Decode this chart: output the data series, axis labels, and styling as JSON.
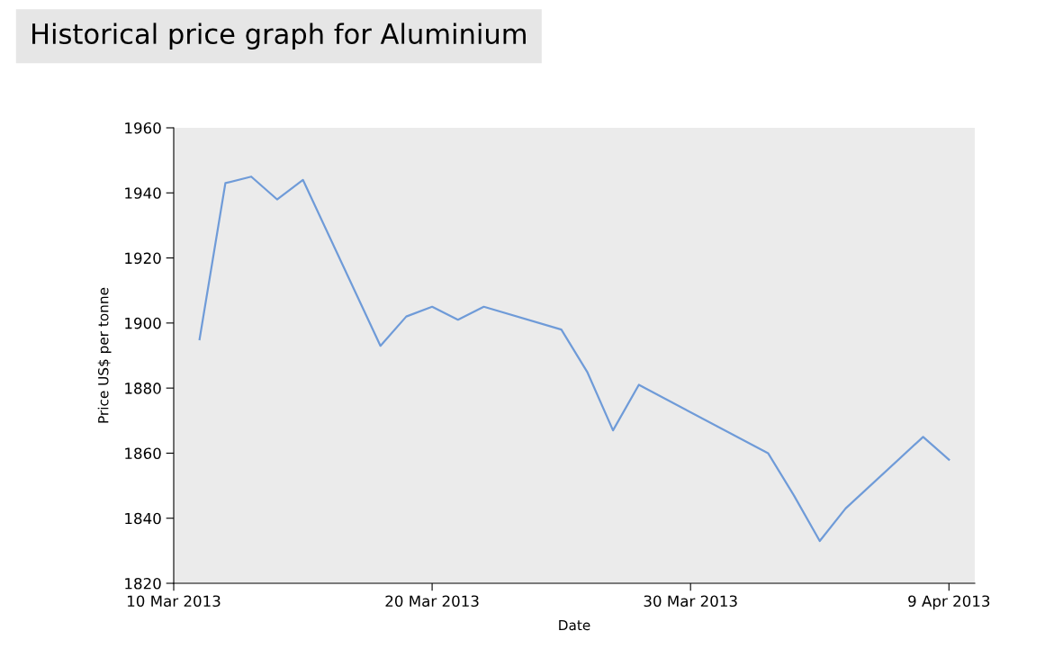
{
  "chart_data": {
    "type": "line",
    "title": "Historical price graph for Aluminium",
    "xlabel": "Date",
    "ylabel": "Price US$ per tonne",
    "x": [
      "2013-03-11",
      "2013-03-12",
      "2013-03-13",
      "2013-03-14",
      "2013-03-15",
      "2013-03-18",
      "2013-03-19",
      "2013-03-20",
      "2013-03-21",
      "2013-03-22",
      "2013-03-25",
      "2013-03-26",
      "2013-03-27",
      "2013-03-28",
      "2013-04-02",
      "2013-04-03",
      "2013-04-04",
      "2013-04-05",
      "2013-04-08",
      "2013-04-09"
    ],
    "series": [
      {
        "color": "#6f9bd8",
        "values": [
          1895,
          1943,
          1945,
          1938,
          1944,
          1893,
          1902,
          1905,
          1901,
          1905,
          1898,
          1885,
          1867,
          1881,
          1860,
          1847,
          1833,
          1843,
          1865,
          1858
        ]
      }
    ],
    "xlim": [
      "2013-03-10",
      "2013-04-10"
    ],
    "xticks": [
      {
        "value": "2013-03-10",
        "label": "10 Mar 2013"
      },
      {
        "value": "2013-03-20",
        "label": "20 Mar 2013"
      },
      {
        "value": "2013-03-30",
        "label": "30 Mar 2013"
      },
      {
        "value": "2013-04-09",
        "label": "9 Apr 2013"
      }
    ],
    "ylim": [
      1820,
      1960
    ],
    "yticks": [
      1820,
      1840,
      1860,
      1880,
      1900,
      1920,
      1940,
      1960
    ],
    "grid": false,
    "marker": "none",
    "line_style": "solid"
  }
}
